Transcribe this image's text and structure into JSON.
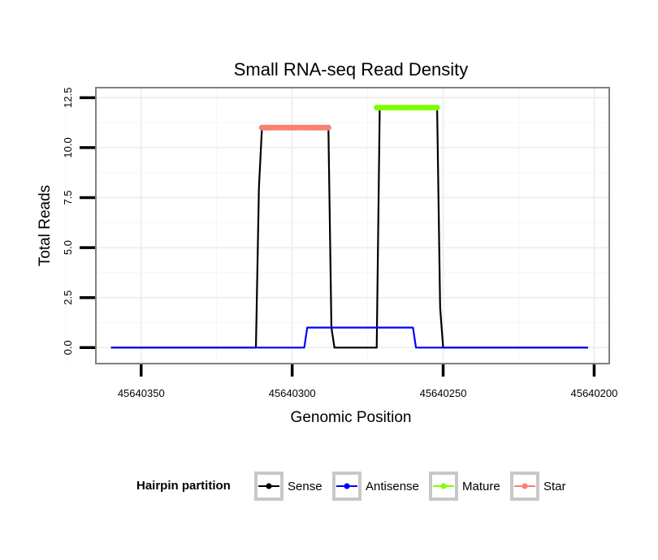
{
  "chart_data": {
    "type": "line",
    "title": "Small RNA-seq Read Density",
    "xlabel": "Genomic Position",
    "ylabel": "Total Reads",
    "x_reversed": true,
    "xlim": [
      45640365,
      45640195
    ],
    "ylim": [
      -0.8,
      13
    ],
    "x_ticks": [
      45640350,
      45640300,
      45640250,
      45640200
    ],
    "x_tick_labels": [
      "45640350",
      "45640300",
      "45640250",
      "45640200"
    ],
    "y_ticks": [
      0,
      2.5,
      5,
      7.5,
      10,
      12.5
    ],
    "y_tick_labels": [
      "0.0",
      "2.5",
      "5.0",
      "7.5",
      "10.0",
      "12.5"
    ],
    "grid": true,
    "legend": {
      "title": "Hairpin partition",
      "placement": "bottom",
      "entries": [
        "Sense",
        "Antisense",
        "Mature",
        "Star"
      ]
    },
    "series": [
      {
        "name": "Sense",
        "color": "#000000",
        "style": "line",
        "x": [
          45640360,
          45640312,
          45640311,
          45640310,
          45640288,
          45640287,
          45640286,
          45640276,
          45640272,
          45640271,
          45640252,
          45640251,
          45640250,
          45640202
        ],
        "y": [
          0,
          0,
          8,
          11,
          11,
          1,
          0,
          0,
          0,
          12,
          12,
          2,
          0,
          0
        ]
      },
      {
        "name": "Antisense",
        "color": "#0000ff",
        "style": "line",
        "x": [
          45640360,
          45640296,
          45640295,
          45640260,
          45640259,
          45640202
        ],
        "y": [
          0,
          0,
          1,
          1,
          0,
          0
        ]
      },
      {
        "name": "Mature",
        "color": "#7fff00",
        "style": "points",
        "x": [
          45640272,
          45640271,
          45640270,
          45640269,
          45640268,
          45640267,
          45640266,
          45640265,
          45640264,
          45640263,
          45640262,
          45640261,
          45640260,
          45640259,
          45640258,
          45640257,
          45640256,
          45640255,
          45640254,
          45640253,
          45640252
        ],
        "y": [
          12,
          12,
          12,
          12,
          12,
          12,
          12,
          12,
          12,
          12,
          12,
          12,
          12,
          12,
          12,
          12,
          12,
          12,
          12,
          12,
          12
        ]
      },
      {
        "name": "Star",
        "color": "#fa8072",
        "style": "points",
        "x": [
          45640310,
          45640309,
          45640308,
          45640307,
          45640306,
          45640305,
          45640304,
          45640303,
          45640302,
          45640301,
          45640300,
          45640299,
          45640298,
          45640297,
          45640296,
          45640295,
          45640294,
          45640293,
          45640292,
          45640291,
          45640290,
          45640289,
          45640288
        ],
        "y": [
          11,
          11,
          11,
          11,
          11,
          11,
          11,
          11,
          11,
          11,
          11,
          11,
          11,
          11,
          11,
          11,
          11,
          11,
          11,
          11,
          11,
          11,
          11
        ]
      }
    ]
  }
}
